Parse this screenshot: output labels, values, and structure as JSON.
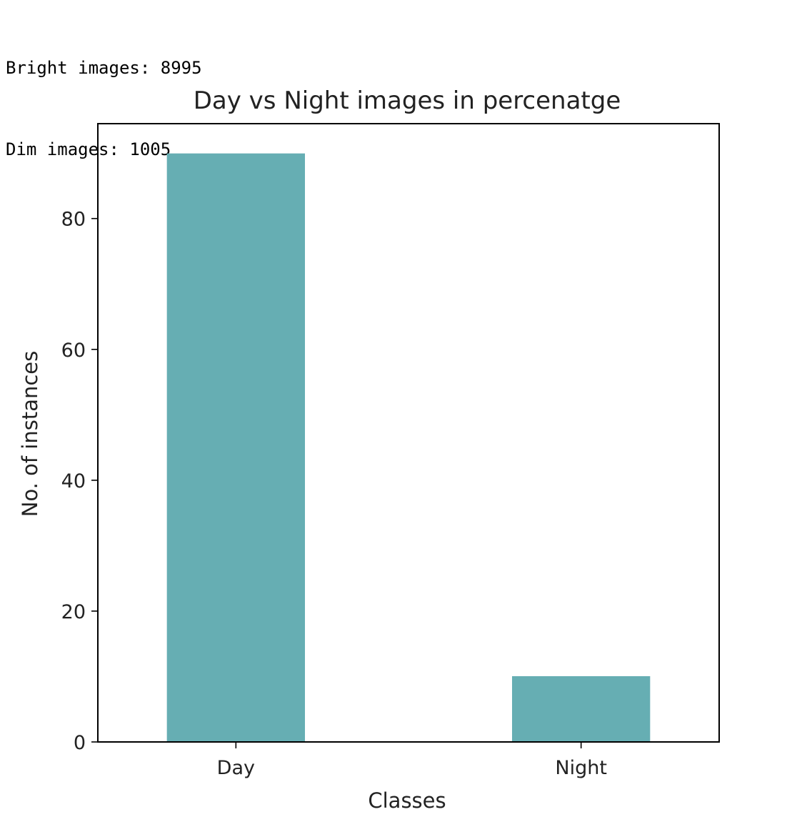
{
  "console": {
    "lines": [
      "Bright images: 8995",
      "Dim images: 1005"
    ]
  },
  "colors": {
    "bar": "#66aeb3",
    "axis": "#000000"
  },
  "chart_data": {
    "type": "bar",
    "title": "Day vs Night images in percenatge",
    "xlabel": "Classes",
    "ylabel": "No. of instances",
    "categories": [
      "Day",
      "Night"
    ],
    "values": [
      89.95,
      10.05
    ],
    "ylim": [
      0,
      94.5
    ],
    "yticks": [
      0,
      20,
      40,
      60,
      80
    ],
    "grid": false
  }
}
